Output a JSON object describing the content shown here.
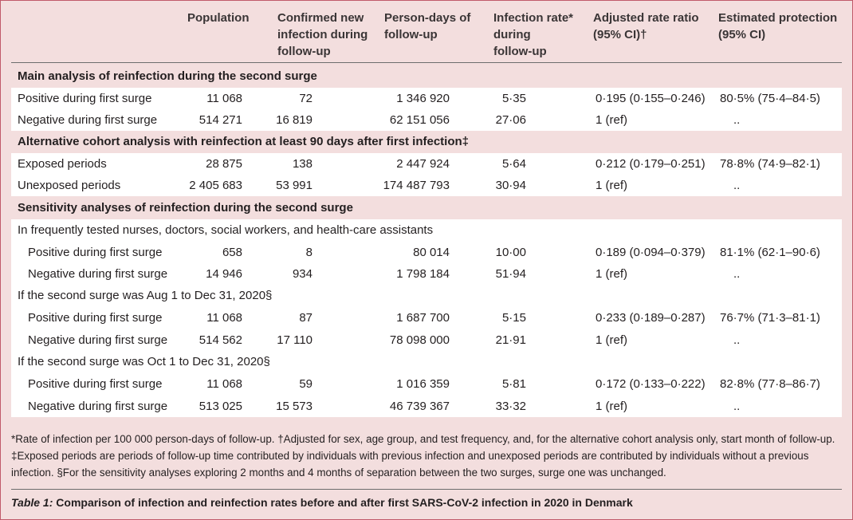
{
  "header": {
    "population": "Population",
    "confirmed_l1": "Confirmed new",
    "confirmed_l2": "infection during",
    "confirmed_l3": "follow-up",
    "persondays_l1": "Person-days of",
    "persondays_l2": "follow-up",
    "rate_l1": "Infection rate*",
    "rate_l2": "during",
    "rate_l3": "follow-up",
    "ratio_l1": "Adjusted rate ratio",
    "ratio_l2": "(95% CI)†",
    "protection_l1": "Estimated protection",
    "protection_l2": "(95% CI)"
  },
  "sections": [
    {
      "title": "Main analysis of reinfection during the second surge"
    },
    {
      "title": "Alternative cohort analysis with reinfection at least 90 days after first infection‡"
    },
    {
      "title": "Sensitivity analyses of reinfection during the second surge"
    }
  ],
  "main_rows": [
    {
      "label": "Positive during first surge",
      "population": "11 068",
      "confirmed": "72",
      "person_days": "1 346 920",
      "rate": "5·35",
      "ratio": "0·195 (0·155–0·246)",
      "protection": "80·5% (75·4–84·5)"
    },
    {
      "label": "Negative during first surge",
      "population": "514 271",
      "confirmed": "16 819",
      "person_days": "62 151 056",
      "rate": "27·06",
      "ratio": "1 (ref)",
      "protection": ".."
    }
  ],
  "alt_rows": [
    {
      "label": "Exposed periods",
      "population": "28 875",
      "confirmed": "138",
      "person_days": "2 447 924",
      "rate": "5·64",
      "ratio": "0·212 (0·179–0·251)",
      "protection": "78·8% (74·9–82·1)"
    },
    {
      "label": "Unexposed periods",
      "population": "2 405 683",
      "confirmed": "53 991",
      "person_days": "174 487 793",
      "rate": "30·94",
      "ratio": "1 (ref)",
      "protection": ".."
    }
  ],
  "sens_groups": [
    {
      "title": "In frequently tested nurses, doctors, social workers, and health-care assistants",
      "rows": [
        {
          "label": "Positive during first surge",
          "population": "658",
          "confirmed": "8",
          "person_days": "80 014",
          "rate": "10·00",
          "ratio": "0·189 (0·094–0·379)",
          "protection": "81·1% (62·1–90·6)"
        },
        {
          "label": "Negative during first surge",
          "population": "14 946",
          "confirmed": "934",
          "person_days": "1 798 184",
          "rate": "51·94",
          "ratio": "1 (ref)",
          "protection": ".."
        }
      ]
    },
    {
      "title": "If the second surge was Aug 1 to Dec 31, 2020§",
      "rows": [
        {
          "label": "Positive during first surge",
          "population": "11 068",
          "confirmed": "87",
          "person_days": "1 687 700",
          "rate": "5·15",
          "ratio": "0·233 (0·189–0·287)",
          "protection": "76·7% (71·3–81·1)"
        },
        {
          "label": "Negative during first surge",
          "population": "514 562",
          "confirmed": "17 110",
          "person_days": "78 098 000",
          "rate": "21·91",
          "ratio": "1 (ref)",
          "protection": ".."
        }
      ]
    },
    {
      "title": "If the second surge was Oct 1 to Dec 31, 2020§",
      "rows": [
        {
          "label": "Positive during first surge",
          "population": "11 068",
          "confirmed": "59",
          "person_days": "1 016 359",
          "rate": "5·81",
          "ratio": "0·172 (0·133–0·222)",
          "protection": "82·8% (77·8–86·7)"
        },
        {
          "label": "Negative during first surge",
          "population": "513 025",
          "confirmed": "15 573",
          "person_days": "46 739 367",
          "rate": "33·32",
          "ratio": "1 (ref)",
          "protection": ".."
        }
      ]
    }
  ],
  "footnote": "*Rate of infection per 100 000 person-days of follow-up. †Adjusted for sex, age group, and test frequency, and, for the alternative cohort analysis only, start month of follow-up. ‡Exposed periods are periods of follow-up time contributed by individuals with previous infection and unexposed periods are contributed by individuals without a previous infection. §For the sensitivity analyses exploring 2 months and 4 months of separation between the two surges, surge one was unchanged.",
  "caption": {
    "label": "Table 1:",
    "text": " Comparison of infection and reinfection rates before and after first SARS-CoV-2 infection in 2020 in Denmark"
  }
}
